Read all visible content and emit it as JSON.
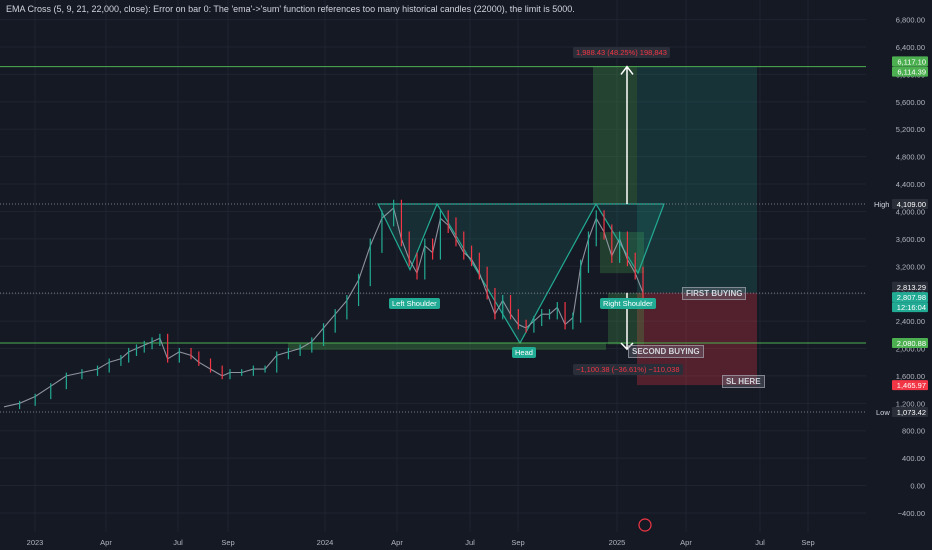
{
  "header": {
    "error_text": "EMA Cross (5, 9, 21, 22,000, close): Error on bar 0: The 'ema'->'sum' function references too many historical candles (22000), the limit is 5000."
  },
  "colors": {
    "background": "#151924",
    "teal": "#22ab94",
    "red": "#f23645",
    "green_line": "#4caf50",
    "white": "#ffffff"
  },
  "chart_data": {
    "type": "line",
    "series": [],
    "x_ticks": [
      "2023",
      "Apr",
      "Jul",
      "Sep",
      "2024",
      "Apr",
      "Jul",
      "Sep",
      "2025",
      "Apr",
      "Jul",
      "Sep"
    ],
    "y_ticks": [
      6800,
      6400,
      6000,
      5600,
      5200,
      4800,
      4400,
      4000,
      3600,
      3200,
      2800,
      2400,
      2000,
      1600,
      1200,
      800,
      400,
      0,
      -400
    ],
    "y_tick_labels": [
      "6,800.00",
      "6,400.00",
      "6,000.00",
      "5,600.00",
      "5,200.00",
      "4,800.00",
      "4,400.00",
      "4,000.00",
      "3,600.00",
      "3,200.00",
      "2,800.00",
      "2,400.00",
      "2,000.00",
      "1,600.00",
      "1,200.00",
      "800.00",
      "400.00",
      "0.00",
      "−400.00"
    ],
    "ylim": [
      -500,
      6950
    ],
    "price_path": [
      [
        0,
        1150
      ],
      [
        0.04,
        1200
      ],
      [
        0.08,
        1300
      ],
      [
        0.12,
        1450
      ],
      [
        0.16,
        1600
      ],
      [
        0.2,
        1650
      ],
      [
        0.24,
        1700
      ],
      [
        0.27,
        1800
      ],
      [
        0.3,
        1850
      ],
      [
        0.32,
        1950
      ],
      [
        0.34,
        2000
      ],
      [
        0.36,
        2050
      ],
      [
        0.38,
        2100
      ],
      [
        0.4,
        2150
      ],
      [
        0.42,
        1850
      ],
      [
        0.45,
        1950
      ],
      [
        0.48,
        1900
      ],
      [
        0.5,
        1800
      ],
      [
        0.53,
        1700
      ],
      [
        0.56,
        1600
      ],
      [
        0.58,
        1650
      ],
      [
        0.61,
        1650
      ],
      [
        0.64,
        1700
      ],
      [
        0.67,
        1700
      ],
      [
        0.7,
        1900
      ],
      [
        0.73,
        1950
      ],
      [
        0.76,
        2000
      ],
      [
        0.79,
        2100
      ],
      [
        0.82,
        2300
      ],
      [
        0.85,
        2500
      ],
      [
        0.88,
        2700
      ],
      [
        0.91,
        3000
      ],
      [
        0.94,
        3500
      ],
      [
        0.97,
        3900
      ],
      [
        1.0,
        4050
      ],
      [
        1.02,
        3600
      ],
      [
        1.04,
        3300
      ],
      [
        1.06,
        3100
      ],
      [
        1.08,
        3500
      ],
      [
        1.1,
        3400
      ],
      [
        1.12,
        3900
      ],
      [
        1.14,
        3800
      ],
      [
        1.16,
        3600
      ],
      [
        1.18,
        3400
      ],
      [
        1.2,
        3300
      ],
      [
        1.22,
        3100
      ],
      [
        1.24,
        2800
      ],
      [
        1.26,
        2500
      ],
      [
        1.28,
        2700
      ],
      [
        1.3,
        2500
      ],
      [
        1.32,
        2350
      ],
      [
        1.34,
        2300
      ],
      [
        1.36,
        2400
      ],
      [
        1.38,
        2500
      ],
      [
        1.4,
        2500
      ],
      [
        1.42,
        2600
      ],
      [
        1.44,
        2350
      ],
      [
        1.46,
        2450
      ],
      [
        1.48,
        3200
      ],
      [
        1.5,
        3600
      ],
      [
        1.52,
        3900
      ],
      [
        1.54,
        3700
      ],
      [
        1.56,
        3350
      ],
      [
        1.58,
        3600
      ],
      [
        1.6,
        3300
      ],
      [
        1.62,
        3100
      ],
      [
        1.64,
        2813
      ]
    ],
    "price_path_note": "",
    "horizontal_levels": [
      {
        "value": 6117.1,
        "label": "6,117.10",
        "color": "#4caf50"
      },
      {
        "value": 6114.39,
        "label": "6,114.39",
        "color": "#4caf50"
      },
      {
        "value": 4109.0,
        "label": "4,109.00",
        "name": "High"
      },
      {
        "value": 2813.29,
        "label": "2,813.29"
      },
      {
        "value": 2807.98,
        "label": "2,807.98",
        "countdown": "12:16:04"
      },
      {
        "value": 2080.88,
        "label": "2,080.88",
        "color": "#4caf50"
      },
      {
        "value": 1465.97,
        "label": "1,465.97",
        "color": "#f23645"
      },
      {
        "value": 1073.42,
        "label": "1,073.42",
        "name": "Low"
      }
    ],
    "pattern_labels": [
      "Left Shoulder",
      "Head",
      "Right Shoulder"
    ],
    "boxes": [
      "FIRST BUYING",
      "SECOND BUYING",
      "SL HERE"
    ],
    "measure_up": "1,988.43 (48.25%) 198,843",
    "measure_down": "−1,100.38 (−36.61%) −110,038"
  }
}
